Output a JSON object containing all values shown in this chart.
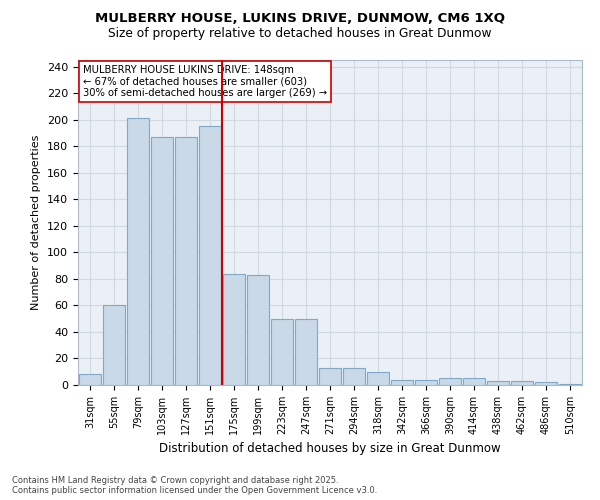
{
  "title_line1": "MULBERRY HOUSE, LUKINS DRIVE, DUNMOW, CM6 1XQ",
  "title_line2": "Size of property relative to detached houses in Great Dunmow",
  "xlabel": "Distribution of detached houses by size in Great Dunmow",
  "ylabel": "Number of detached properties",
  "categories": [
    "31sqm",
    "55sqm",
    "79sqm",
    "103sqm",
    "127sqm",
    "151sqm",
    "175sqm",
    "199sqm",
    "223sqm",
    "247sqm",
    "271sqm",
    "294sqm",
    "318sqm",
    "342sqm",
    "366sqm",
    "390sqm",
    "414sqm",
    "438sqm",
    "462sqm",
    "486sqm",
    "510sqm"
  ],
  "bar_values": [
    8,
    60,
    201,
    187,
    187,
    195,
    84,
    83,
    50,
    50,
    13,
    13,
    10,
    4,
    4,
    5,
    5,
    3,
    3,
    2,
    1
  ],
  "bar_color": "#c9d9e8",
  "bar_edgecolor": "#7fa8c9",
  "grid_color": "#d0d8e0",
  "background_color": "#eaf0f6",
  "vline_x": 5.5,
  "vline_color": "#cc0000",
  "annotation_text": "MULBERRY HOUSE LUKINS DRIVE: 148sqm\n← 67% of detached houses are smaller (603)\n30% of semi-detached houses are larger (269) →",
  "annotation_box_facecolor": "#ffffff",
  "annotation_box_edgecolor": "#cc0000",
  "footnote": "Contains HM Land Registry data © Crown copyright and database right 2025.\nContains public sector information licensed under the Open Government Licence v3.0.",
  "ylim": [
    0,
    245
  ],
  "yticks": [
    0,
    20,
    40,
    60,
    80,
    100,
    120,
    140,
    160,
    180,
    200,
    220,
    240
  ]
}
